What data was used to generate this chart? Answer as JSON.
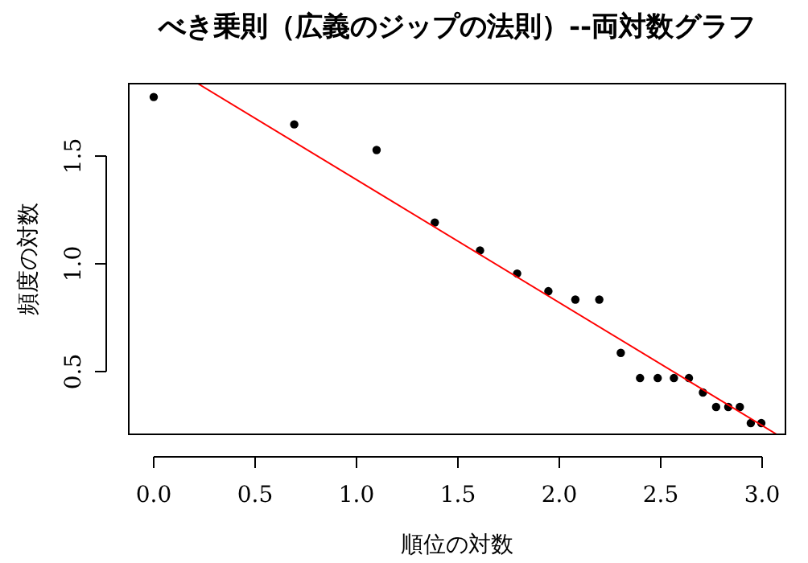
{
  "chart_data": {
    "type": "scatter",
    "title": "べき乗則（広義のジップの法則）--両対数グラフ",
    "xlabel": "順位の対数",
    "ylabel": "頻度の対数",
    "xlim": [
      -0.123,
      3.115
    ],
    "ylim": [
      0.209,
      1.836
    ],
    "xticks": [
      {
        "value": 0,
        "label": "0.0"
      },
      {
        "value": 0.5,
        "label": "0.5"
      },
      {
        "value": 1,
        "label": "1.0"
      },
      {
        "value": 1.5,
        "label": "1.5"
      },
      {
        "value": 2,
        "label": "2.0"
      },
      {
        "value": 2.5,
        "label": "2.5"
      },
      {
        "value": 3,
        "label": "3.0"
      }
    ],
    "yticks": [
      {
        "value": 0.5,
        "label": "0.5"
      },
      {
        "value": 1,
        "label": "1.0"
      },
      {
        "value": 1.5,
        "label": "1.5"
      }
    ],
    "grid": false,
    "series": [
      {
        "type": "scatter",
        "marker": "circle",
        "color": "#000000",
        "x": [
          0,
          0.693,
          1.099,
          1.386,
          1.609,
          1.792,
          1.946,
          2.079,
          2.197,
          2.303,
          2.398,
          2.485,
          2.565,
          2.639,
          2.708,
          2.773,
          2.833,
          2.89,
          2.944,
          2.996
        ],
        "values": [
          1.774,
          1.647,
          1.528,
          1.192,
          1.062,
          0.955,
          0.873,
          0.834,
          0.834,
          0.587,
          0.47,
          0.47,
          0.47,
          0.47,
          0.403,
          0.336,
          0.336,
          0.336,
          0.261,
          0.261
        ]
      },
      {
        "type": "line",
        "marker": "none",
        "line_style": "solid",
        "color": "#ff0000",
        "x": [
          0.22,
          3.07
        ],
        "values": [
          1.835,
          0.21
        ]
      }
    ]
  }
}
